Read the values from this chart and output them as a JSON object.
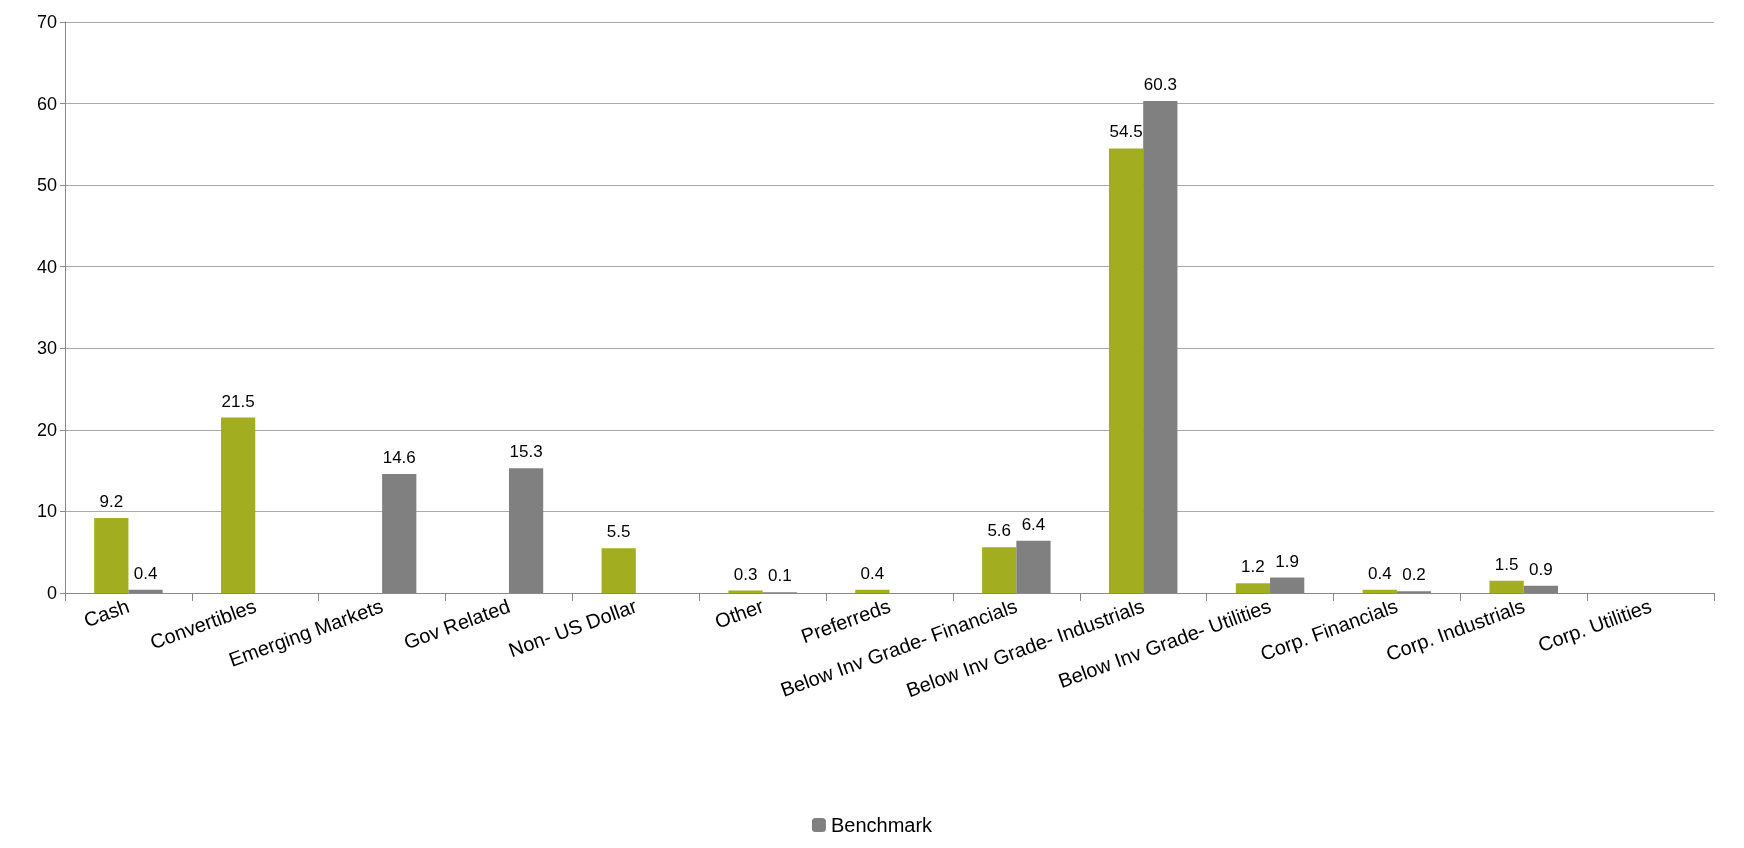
{
  "chart_data": {
    "type": "bar",
    "categories": [
      "Cash",
      "Convertibles",
      "Emerging Markets",
      "Gov Related",
      "Non- US Dollar",
      "Other",
      "Preferreds",
      "Below Inv Grade- Financials",
      "Below Inv Grade- Industrials",
      "Below Inv Grade- Utilities",
      "Corp. Financials",
      "Corp. Industrials",
      "Corp. Utilities"
    ],
    "series": [
      {
        "color": "#a2ad1f",
        "values": [
          9.2,
          21.5,
          null,
          null,
          5.5,
          0.3,
          0.4,
          5.6,
          54.5,
          1.2,
          0.4,
          1.5,
          null
        ]
      },
      {
        "name": "Benchmark",
        "color": "#808080",
        "values": [
          0.4,
          null,
          14.6,
          15.3,
          null,
          0.1,
          null,
          6.4,
          60.3,
          1.9,
          0.2,
          0.9,
          null
        ]
      }
    ],
    "ylim": [
      0,
      70
    ],
    "yticks": [
      0,
      10,
      20,
      30,
      40,
      50,
      60,
      70
    ],
    "grid": "y",
    "legend": "bottom",
    "data_labels": true
  }
}
